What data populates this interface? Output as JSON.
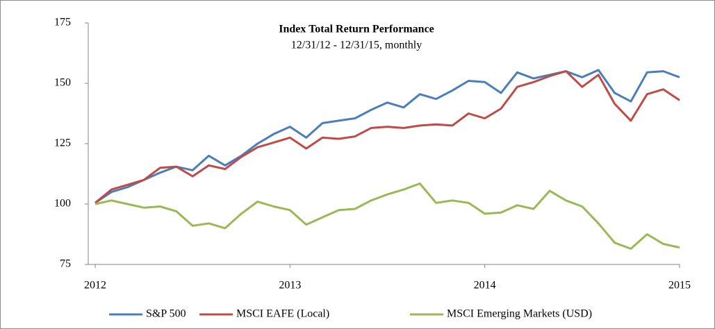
{
  "chart_data": {
    "type": "line",
    "title": "Index Total Return Performance",
    "subtitle": "12/31/12 - 12/31/15, monthly",
    "categories": [
      "2012",
      null,
      null,
      null,
      null,
      null,
      null,
      null,
      null,
      null,
      null,
      null,
      "2013",
      null,
      null,
      null,
      null,
      null,
      null,
      null,
      null,
      null,
      null,
      null,
      "2014",
      null,
      null,
      null,
      null,
      null,
      null,
      null,
      null,
      null,
      null,
      null,
      "2015"
    ],
    "series": [
      {
        "name": "S&P 500",
        "color": "#4a7ebb",
        "values": [
          100.5,
          105,
          107,
          110,
          113,
          115.5,
          114,
          120,
          116,
          120,
          125,
          129,
          132,
          127.5,
          133.5,
          134.5,
          135.5,
          139,
          142,
          140,
          145.5,
          143.5,
          147,
          151,
          150.5,
          146,
          154.5,
          152,
          153.5,
          155,
          152.5,
          155.5,
          146,
          142.5,
          154.5,
          155,
          152.5
        ]
      },
      {
        "name": "MSCI EAFE (Local)",
        "color": "#be4b48",
        "values": [
          100.5,
          106,
          108,
          110,
          115,
          115.5,
          111.5,
          116,
          114.5,
          119.5,
          123.5,
          125.5,
          127.5,
          123,
          127.5,
          127,
          128,
          131.5,
          132,
          131.5,
          132.5,
          133,
          132.5,
          137.5,
          135.5,
          139.5,
          148.5,
          150.5,
          153,
          155,
          148.5,
          153.5,
          141.5,
          134.5,
          145.5,
          147.5,
          143
        ]
      },
      {
        "name": "MSCI Emerging Markets (USD)",
        "color": "#98b954",
        "values": [
          100,
          101.5,
          100,
          98.5,
          99,
          97,
          91,
          92,
          90,
          96,
          101,
          99,
          97.5,
          91.5,
          94.5,
          97.5,
          98,
          101.5,
          104,
          106,
          108.5,
          100.5,
          101.5,
          100.5,
          96,
          96.5,
          99.5,
          98,
          105.5,
          101.5,
          99,
          92,
          84,
          81.5,
          87.5,
          83.5,
          82
        ]
      }
    ],
    "ylim": [
      75,
      175
    ],
    "yticks": [
      75,
      100,
      125,
      150,
      175
    ],
    "legend": "bottom"
  }
}
